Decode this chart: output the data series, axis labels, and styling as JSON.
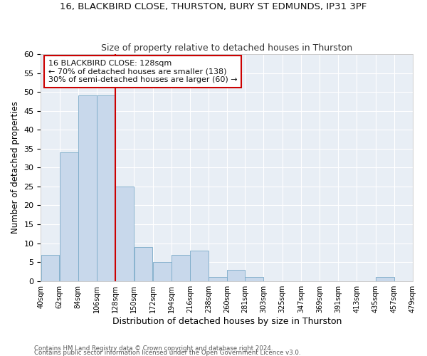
{
  "title1": "16, BLACKBIRD CLOSE, THURSTON, BURY ST EDMUNDS, IP31 3PF",
  "title2": "Size of property relative to detached houses in Thurston",
  "xlabel": "Distribution of detached houses by size in Thurston",
  "ylabel": "Number of detached properties",
  "footnote1": "Contains HM Land Registry data © Crown copyright and database right 2024.",
  "footnote2": "Contains public sector information licensed under the Open Government Licence v3.0.",
  "annotation_line1": "16 BLACKBIRD CLOSE: 128sqm",
  "annotation_line2": "← 70% of detached houses are smaller (138)",
  "annotation_line3": "30% of semi-detached houses are larger (60) →",
  "bar_left_edges": [
    40,
    62,
    84,
    106,
    128,
    150,
    172,
    194,
    216,
    238,
    260,
    281,
    303,
    325,
    347,
    369,
    391,
    413,
    435,
    457
  ],
  "bar_widths": [
    22,
    22,
    22,
    22,
    22,
    22,
    22,
    22,
    22,
    22,
    21,
    22,
    22,
    22,
    22,
    22,
    22,
    22,
    22,
    22
  ],
  "bar_heights": [
    7,
    34,
    49,
    49,
    25,
    9,
    5,
    7,
    8,
    1,
    3,
    1,
    0,
    0,
    0,
    0,
    0,
    0,
    1,
    0
  ],
  "tick_labels": [
    "40sqm",
    "62sqm",
    "84sqm",
    "106sqm",
    "128sqm",
    "150sqm",
    "172sqm",
    "194sqm",
    "216sqm",
    "238sqm",
    "260sqm",
    "281sqm",
    "303sqm",
    "325sqm",
    "347sqm",
    "369sqm",
    "391sqm",
    "413sqm",
    "435sqm",
    "457sqm",
    "479sqm"
  ],
  "property_line_x": 128,
  "bar_color": "#c8d8eb",
  "bar_edge_color": "#7aaac8",
  "vline_color": "#cc0000",
  "annotation_box_color": "#cc0000",
  "fig_bg_color": "#ffffff",
  "plot_bg_color": "#e8eef5",
  "grid_color": "#ffffff",
  "ylim": [
    0,
    60
  ],
  "yticks": [
    0,
    5,
    10,
    15,
    20,
    25,
    30,
    35,
    40,
    45,
    50,
    55,
    60
  ]
}
